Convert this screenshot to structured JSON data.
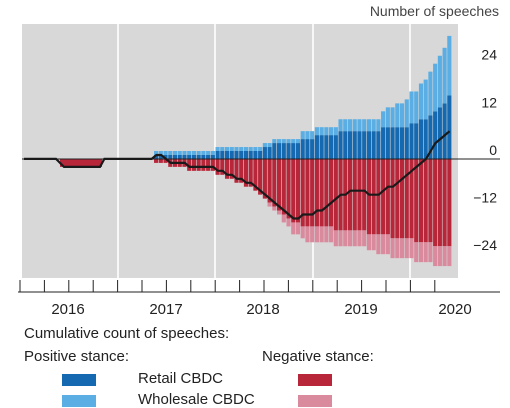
{
  "chart_data": {
    "type": "bar",
    "subtype": "stacked-bar-with-line",
    "unit_label": "Number of speeches",
    "x_tick_labels": [
      "2016",
      "2017",
      "2018",
      "2019",
      "2020"
    ],
    "y_ticks": [
      24,
      12,
      0,
      -12,
      -24
    ],
    "ylim": [
      -30,
      34
    ],
    "grid": "vertical year separators",
    "legend": {
      "title": "Cumulative count of speeches:",
      "positive_label": "Positive stance:",
      "negative_label": "Negative stance:",
      "entries": [
        {
          "label": "Retail CBDC",
          "positive_color": "#1469b0",
          "negative_color": "#b8263a"
        },
        {
          "label": "Wholesale CBDC",
          "positive_color": "#5aaee3",
          "negative_color": "#d98a9c"
        }
      ]
    },
    "start_period": "2015-Q4",
    "series": [
      {
        "name": "Retail CBDC (positive)",
        "values": [
          0,
          0,
          0,
          0,
          0,
          0,
          0,
          0,
          0,
          0,
          0,
          0,
          0,
          0,
          0,
          0,
          0,
          0,
          0,
          0,
          0,
          0,
          0,
          0,
          0,
          0,
          0,
          0,
          0,
          0,
          0,
          0,
          0,
          0,
          0,
          0,
          0,
          0,
          0,
          0,
          0,
          0,
          0,
          0,
          0,
          0,
          0,
          0,
          0,
          0,
          0,
          0,
          0,
          0,
          0,
          0,
          0,
          0,
          0,
          0,
          0,
          0,
          0,
          0,
          0,
          0,
          0,
          0,
          0,
          0,
          0,
          0,
          0,
          0,
          0,
          0,
          0,
          0,
          0,
          0,
          0,
          0,
          0,
          0,
          0,
          0,
          0,
          0,
          0,
          0,
          0,
          0,
          0,
          0,
          0,
          0
        ]
      },
      {
        "name": "Wholesale CBDC (positive)",
        "values": [
          0,
          0,
          0,
          0,
          0,
          0,
          0,
          0,
          0,
          0,
          0,
          0,
          0,
          0,
          0,
          0,
          0,
          0,
          0,
          0,
          0,
          0,
          0,
          0,
          0,
          0,
          0,
          0,
          0,
          0,
          0,
          0,
          0,
          0,
          0,
          0,
          0,
          0,
          0,
          0,
          0,
          0,
          0,
          0,
          0,
          0,
          0,
          0,
          0,
          0,
          0,
          0,
          0,
          0,
          0,
          0,
          0,
          0,
          0,
          0,
          0,
          0,
          0,
          0,
          0,
          0,
          0,
          0,
          0,
          0,
          0,
          0,
          0,
          0,
          0,
          0,
          0,
          0,
          0,
          0,
          0,
          0,
          0,
          0,
          0,
          0,
          0,
          0,
          0,
          0,
          0,
          0,
          0,
          0,
          0,
          0
        ]
      },
      {
        "name": "Retail CBDC (negative)",
        "values": [
          0,
          0,
          0,
          0,
          0,
          0,
          0,
          0,
          0,
          0,
          0,
          0,
          0,
          0,
          0,
          0,
          0,
          0,
          0,
          0,
          0,
          0,
          0,
          0,
          0,
          0,
          0,
          0,
          0,
          0,
          0,
          0,
          0,
          0,
          0,
          0,
          0,
          0,
          0,
          0,
          0,
          0,
          0,
          0,
          0,
          0,
          0,
          0,
          0,
          0,
          0,
          0,
          0,
          0,
          0,
          0,
          0,
          0,
          0,
          0,
          0,
          0,
          0,
          0,
          0,
          0,
          0,
          0,
          0,
          0,
          0,
          0,
          0,
          0,
          0,
          0,
          0,
          0,
          0,
          0,
          0,
          0,
          0,
          0,
          0,
          0,
          0,
          0,
          0,
          0,
          0,
          0,
          0,
          0,
          0,
          0
        ]
      },
      {
        "name": "Wholesale CBDC (negative)",
        "values": [
          0,
          0,
          0,
          0,
          0,
          0,
          0,
          0,
          0,
          0,
          0,
          0,
          0,
          0,
          0,
          0,
          0,
          0,
          0,
          0,
          0,
          0,
          0,
          0,
          0,
          0,
          0,
          0,
          0,
          0,
          0,
          0,
          0,
          0,
          0,
          0,
          0,
          0,
          0,
          0,
          0,
          0,
          0,
          0,
          0,
          0,
          0,
          0,
          0,
          0,
          0,
          0,
          0,
          0,
          0,
          0,
          0,
          0,
          0,
          0,
          0,
          0,
          0,
          0,
          0,
          0,
          0,
          0,
          0,
          0,
          0,
          0,
          0,
          0,
          0,
          0,
          0,
          0,
          0,
          0,
          0,
          0,
          0,
          0,
          0,
          0,
          0,
          0,
          0,
          0,
          0,
          0,
          0,
          0,
          0,
          0,
          0
        ]
      }
    ],
    "bars": {
      "retail_pos": [
        0,
        0,
        0,
        0,
        0,
        0,
        0,
        0,
        0,
        0,
        0,
        0,
        0,
        0,
        0,
        0,
        0,
        0,
        0,
        0,
        0,
        0,
        0,
        0,
        0,
        0,
        0,
        0,
        0,
        0,
        0,
        0,
        0,
        0,
        0,
        0,
        0,
        0,
        0,
        0,
        0,
        0,
        0,
        0,
        0,
        0,
        0,
        0,
        0,
        0,
        0,
        0,
        0,
        0,
        0,
        0,
        0,
        0,
        0,
        0,
        0,
        0,
        0,
        0,
        0,
        0,
        0,
        0,
        0,
        0,
        0,
        0,
        0,
        0,
        0,
        0,
        0,
        0,
        0,
        0,
        0,
        0,
        0,
        0,
        0,
        0,
        0,
        0,
        0,
        0,
        0,
        0,
        0,
        0,
        0,
        0
      ],
      "pos_retail": [
        0,
        0,
        0,
        0,
        0,
        0,
        0,
        0,
        0,
        0,
        0,
        1,
        1,
        1,
        1,
        1,
        1,
        1,
        1,
        1,
        1,
        1,
        1,
        1,
        2,
        2,
        2,
        2,
        2,
        2,
        2,
        2,
        2,
        2,
        3,
        3,
        4,
        4,
        4,
        4,
        4,
        4,
        5,
        5,
        5,
        6,
        6,
        6,
        6,
        6,
        7,
        7,
        7,
        7,
        7,
        7,
        7,
        7,
        7,
        8,
        8,
        8,
        8,
        8,
        8,
        9,
        9,
        10,
        10,
        11,
        12,
        13,
        14,
        16
      ],
      "pos_wholesale": [
        0,
        0,
        0,
        0,
        0,
        0,
        0,
        0,
        0,
        0,
        0,
        1,
        1,
        1,
        1,
        1,
        1,
        1,
        1,
        1,
        1,
        1,
        1,
        1,
        1,
        1,
        1,
        1,
        1,
        1,
        1,
        1,
        1,
        1,
        1,
        1,
        1,
        1,
        1,
        1,
        1,
        1,
        2,
        2,
        2,
        2,
        2,
        2,
        2,
        2,
        3,
        3,
        3,
        3,
        3,
        3,
        3,
        3,
        3,
        4,
        5,
        5,
        6,
        6,
        7,
        8,
        8,
        9,
        10,
        11,
        12,
        13,
        14,
        15
      ],
      "neg_retail": [
        0,
        0,
        0,
        0,
        0,
        0,
        0,
        0,
        0,
        0,
        0,
        1,
        1,
        1,
        2,
        2,
        2,
        2,
        3,
        3,
        3,
        3,
        3,
        3,
        4,
        4,
        5,
        5,
        6,
        6,
        7,
        7,
        8,
        9,
        10,
        11,
        12,
        13,
        14,
        15,
        16,
        16,
        17,
        17,
        17,
        17,
        17,
        17,
        17,
        18,
        18,
        18,
        18,
        18,
        18,
        18,
        19,
        19,
        19,
        19,
        19,
        20,
        20,
        20,
        20,
        20,
        21,
        21,
        21,
        21,
        22,
        22,
        22,
        22
      ],
      "neg_wholesale": [
        0,
        0,
        0,
        0,
        0,
        0,
        0,
        0,
        0,
        0,
        0,
        0,
        0,
        0,
        0,
        0,
        0,
        0,
        0,
        0,
        0,
        0,
        0,
        0,
        0,
        0,
        0,
        0,
        0,
        0,
        0,
        0,
        0,
        0,
        0,
        1,
        1,
        1,
        2,
        2,
        3,
        3,
        3,
        4,
        4,
        4,
        4,
        4,
        4,
        4,
        4,
        4,
        4,
        4,
        4,
        4,
        4,
        4,
        5,
        5,
        5,
        5,
        5,
        5,
        5,
        5,
        5,
        5,
        5,
        5,
        5,
        5,
        5,
        5
      ],
      "net_line": [
        0,
        0,
        0,
        0,
        0,
        0,
        0,
        0,
        0,
        0,
        0,
        1,
        1,
        0,
        -1,
        -1,
        -1,
        -1,
        -2,
        -2,
        -2,
        -2,
        -2,
        -2,
        -3,
        -3,
        -4,
        -4,
        -5,
        -5,
        -6,
        -6,
        -7,
        -8,
        -9,
        -10,
        -11,
        -12,
        -13,
        -14,
        -15,
        -15,
        -14,
        -14,
        -14,
        -13,
        -13,
        -12,
        -11,
        -10,
        -9,
        -9,
        -8,
        -8,
        -8,
        -8,
        -9,
        -9,
        -9,
        -8,
        -7,
        -7,
        -6,
        -5,
        -4,
        -3,
        -2,
        -1,
        0,
        2,
        4,
        5,
        6,
        7
      ]
    }
  }
}
